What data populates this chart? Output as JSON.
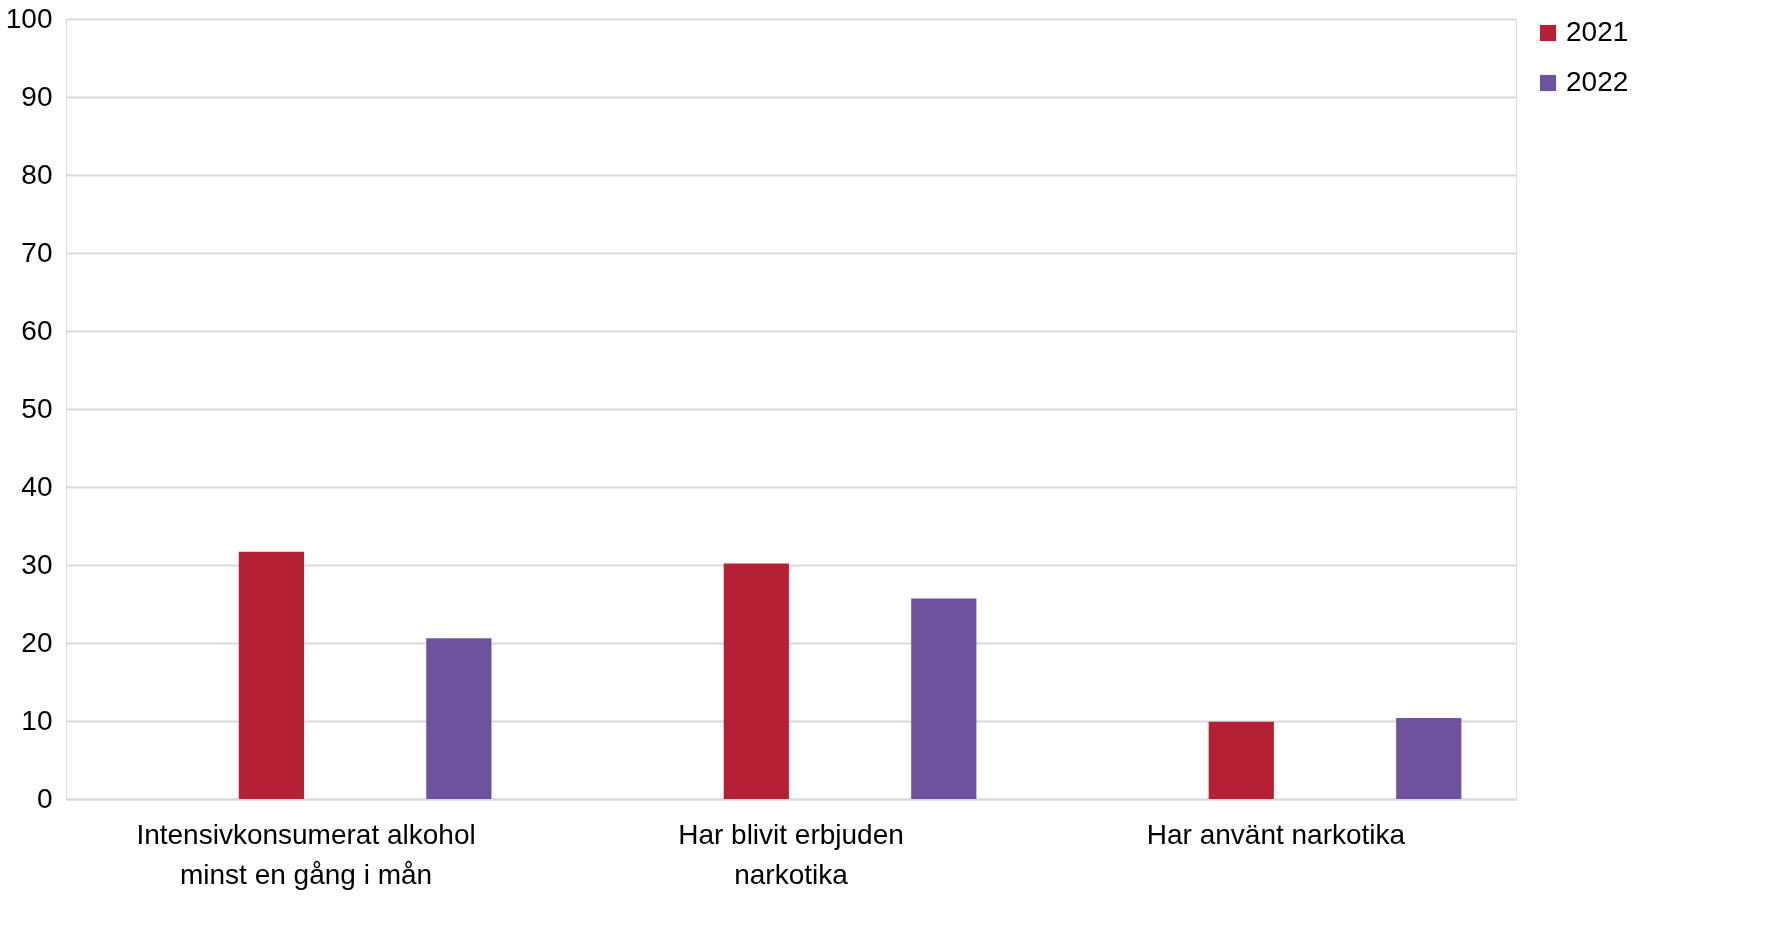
{
  "chart_data": {
    "type": "bar",
    "categories": [
      "Intensivkonsumerat alkohol minst en gång i mån",
      "Har blivit erbjuden narkotika",
      "Har använt narkotika"
    ],
    "series": [
      {
        "name": "2021",
        "color": "#b52034",
        "values": [
          31.7,
          30.2,
          9.9
        ]
      },
      {
        "name": "2022",
        "color": "#6e52a0",
        "values": [
          20.6,
          25.7,
          10.4
        ]
      }
    ],
    "ylim": [
      0,
      100
    ],
    "yticks": [
      0,
      10,
      20,
      30,
      40,
      50,
      60,
      70,
      80,
      90,
      100
    ],
    "grid": "y",
    "legend": "right"
  }
}
